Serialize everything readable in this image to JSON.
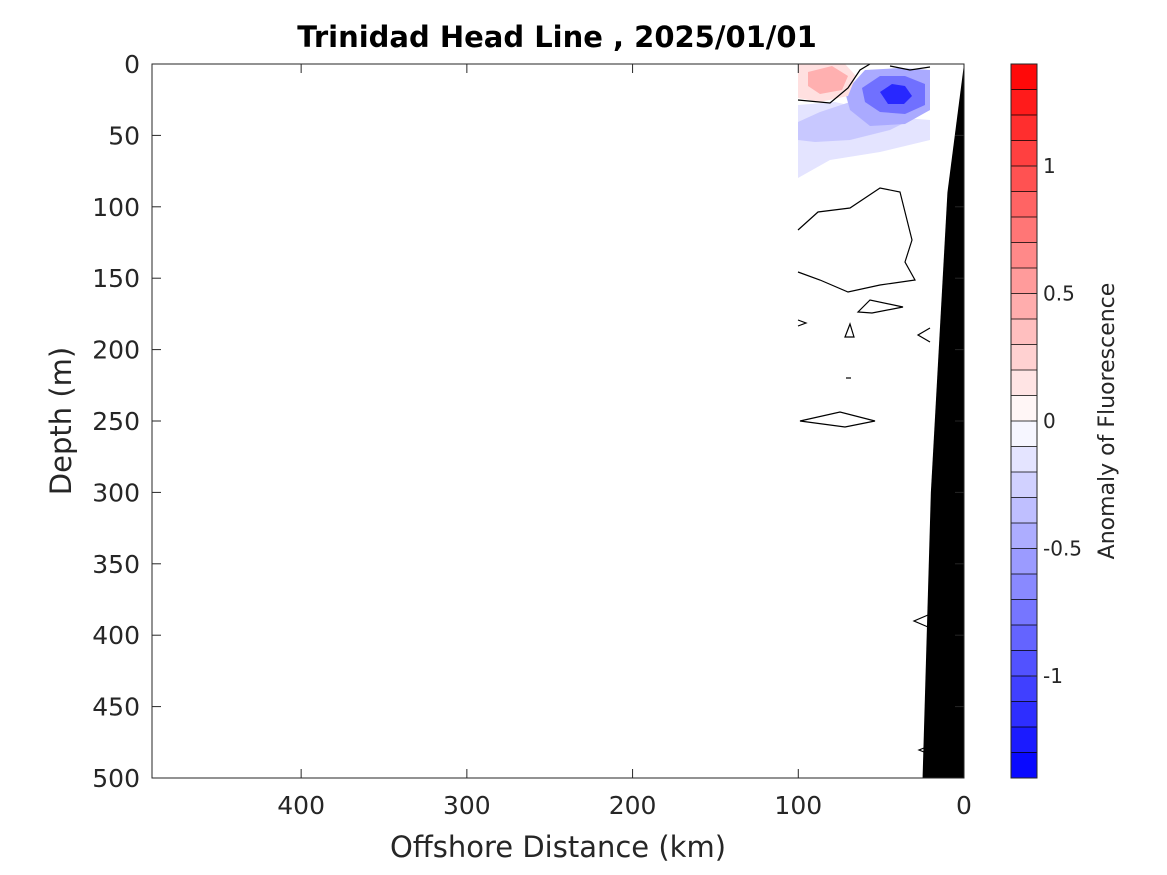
{
  "chart_data": {
    "type": "heatmap",
    "title": "Trinidad Head Line , 2025/01/01",
    "xlabel": "Offshore Distance (km)",
    "ylabel": "Depth (m)",
    "xlim": [
      490,
      0
    ],
    "ylim": [
      0,
      500
    ],
    "x_reversed": true,
    "y_reversed": true,
    "xticks": [
      400,
      300,
      200,
      100,
      0
    ],
    "yticks": [
      0,
      50,
      100,
      150,
      200,
      250,
      300,
      350,
      400,
      450,
      500
    ],
    "colorbar": {
      "label": "Anomaly of Fluorescence",
      "range": [
        -1.4,
        1.4
      ],
      "ticks": [
        1,
        0.5,
        0,
        -0.5,
        -1
      ],
      "levels": 28,
      "low_color": "#0000ff",
      "mid_color": "#ffffff",
      "high_color": "#ff0000"
    },
    "anomaly_patches": [
      {
        "x": 80,
        "y": 12,
        "value": 0.45
      },
      {
        "x": 90,
        "y": 25,
        "value": 0.15
      },
      {
        "x": 40,
        "y": 20,
        "value": -1.25
      },
      {
        "x": 60,
        "y": 35,
        "value": -0.5
      },
      {
        "x": 95,
        "y": 45,
        "value": -0.25
      },
      {
        "x": 50,
        "y": 55,
        "value": -0.12
      }
    ],
    "seafloor": [
      [
        0,
        0
      ],
      [
        10,
        90
      ],
      [
        20,
        300
      ],
      [
        25,
        500
      ]
    ],
    "grid": false
  }
}
